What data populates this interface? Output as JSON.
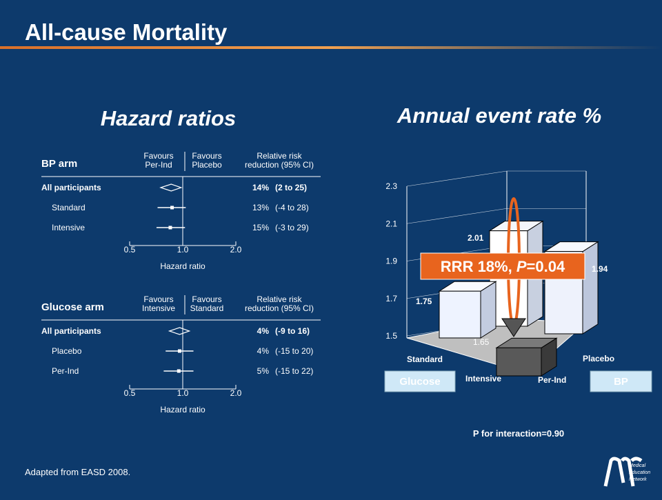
{
  "title": "All-cause Mortality",
  "source": "Adapted from EASD 2008.",
  "logo": [
    "Medical",
    "Education",
    "Network"
  ],
  "chart_data": [
    {
      "type": "forest",
      "title": "Hazard ratios",
      "panel": "BP arm",
      "header_left": [
        "Favours",
        "Per-Ind"
      ],
      "header_right": [
        "Favours",
        "Placebo"
      ],
      "header_rrr": [
        "Relative risk",
        "reduction (95% CI)"
      ],
      "rows": [
        {
          "label": "All participants",
          "hr": 0.86,
          "lo": 0.75,
          "hi": 0.98,
          "rrr": "14%",
          "ci": "(2 to 25)"
        },
        {
          "label": "Standard",
          "hr": 0.87,
          "lo": 0.72,
          "hi": 1.04,
          "rrr": "13%",
          "ci": "(-4 to 28)"
        },
        {
          "label": "Intensive",
          "hr": 0.85,
          "lo": 0.71,
          "hi": 1.03,
          "rrr": "15%",
          "ci": "(-3 to 29)"
        }
      ],
      "log_x": true,
      "xlim": [
        0.5,
        2
      ],
      "xticks": [
        0.5,
        {
          "value": 1,
          "label": "1.0"
        },
        {
          "value": 2,
          "label": "2.0"
        }
      ],
      "xlabel": "Hazard ratio"
    },
    {
      "type": "forest",
      "panel": "Glucose arm",
      "header_left": [
        "Favours",
        "Intensive"
      ],
      "header_right": [
        "Favours",
        "Standard"
      ],
      "header_rrr": [
        "Relative risk",
        "reduction (95% CI)"
      ],
      "rows": [
        {
          "label": "All participants",
          "hr": 0.96,
          "lo": 0.84,
          "hi": 1.09,
          "rrr": "4%",
          "ci": "(-9 to 16)"
        },
        {
          "label": "Placebo",
          "hr": 0.96,
          "lo": 0.8,
          "hi": 1.15,
          "rrr": "4%",
          "ci": "(-15 to 20)"
        },
        {
          "label": "Per-Ind",
          "hr": 0.95,
          "lo": 0.78,
          "hi": 1.15,
          "rrr": "5%",
          "ci": "(-15 to 22)"
        }
      ],
      "log_x": true,
      "xlim": [
        0.5,
        2
      ],
      "xticks": [
        0.5,
        {
          "value": 1,
          "label": "1.0"
        },
        {
          "value": 2,
          "label": "2.0"
        }
      ],
      "xlabel": "Hazard ratio"
    },
    {
      "type": "bar3d",
      "title": "Annual event rate %",
      "values": [
        2.01,
        1.94,
        1.75,
        1.65
      ],
      "ylim": [
        1.5,
        2.3
      ],
      "yticks": [
        1.5,
        1.7,
        1.9,
        2.1,
        2.3
      ],
      "grid": true,
      "glucose_axis": [
        "Standard",
        "Intensive"
      ],
      "bp_axis": [
        "Placebo",
        "Per-Ind"
      ],
      "group_labels": [
        "Glucose",
        "BP"
      ],
      "annotation": {
        "text": "RRR 18%, ",
        "p": "P",
        "rest": "=0.04"
      },
      "footnote": "P for interaction=0.90"
    }
  ]
}
